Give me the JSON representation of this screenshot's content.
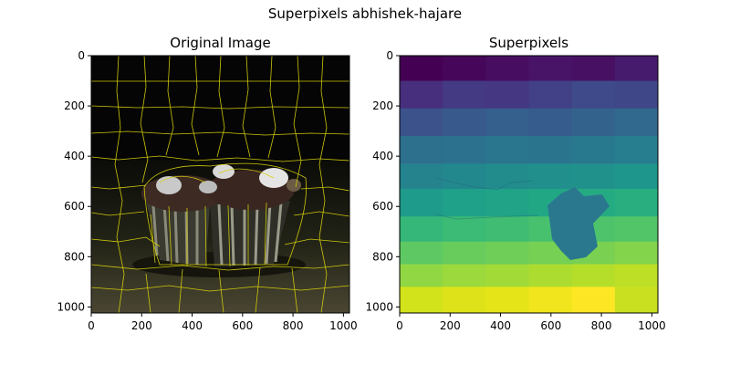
{
  "figure": {
    "suptitle": "Superpixels abhishek-hajare"
  },
  "chart_data": [
    {
      "type": "image",
      "title": "Original Image",
      "xlim": [
        0,
        1024
      ],
      "ylim": [
        1024,
        0
      ],
      "xticks": [
        0,
        200,
        400,
        600,
        800,
        1000
      ],
      "yticks": [
        0,
        200,
        400,
        600,
        800,
        1000
      ],
      "content": "photo of cupcakes on a wooden surface with yellow superpixel boundaries",
      "boundary_color": "#d6d10a",
      "background_color": "#050505"
    },
    {
      "type": "heatmap",
      "title": "Superpixels",
      "xlim": [
        0,
        1024
      ],
      "ylim": [
        1024,
        0
      ],
      "xticks": [
        0,
        200,
        400,
        600,
        800,
        1000
      ],
      "yticks": [
        0,
        200,
        400,
        600,
        800,
        1000
      ],
      "colormap": "viridis",
      "row_bands": [
        {
          "y": [
            0,
            100
          ],
          "colors": [
            "#440154",
            "#46075a",
            "#470d60",
            "#481467",
            "#471063",
            "#461a6c"
          ]
        },
        {
          "y": [
            100,
            210
          ],
          "colors": [
            "#472f7d",
            "#443983",
            "#453781",
            "#424086",
            "#3e4a89",
            "#3f4788"
          ]
        },
        {
          "y": [
            210,
            320
          ],
          "colors": [
            "#3b528b",
            "#37598c",
            "#355f8d",
            "#365c8d",
            "#33638d",
            "#31688e"
          ]
        },
        {
          "y": [
            320,
            430
          ],
          "colors": [
            "#2d708e",
            "#2c728e",
            "#2a768e",
            "#2b748e",
            "#29798e",
            "#277e8e"
          ]
        },
        {
          "y": [
            430,
            530
          ],
          "colors": [
            "#25838e",
            "#23888e",
            "#228c8d",
            "#21908d",
            "#21918c",
            "#1f968b"
          ]
        },
        {
          "y": [
            530,
            640
          ],
          "colors": [
            "#1e9b8a",
            "#1fa088",
            "#20a386",
            "#22a785",
            "#25ab82",
            "#29af7f"
          ]
        },
        {
          "y": [
            640,
            740
          ],
          "colors": [
            "#35b779",
            "#3bbb75",
            "#40bd72",
            "#48c16e",
            "#4ec36b",
            "#52c569"
          ]
        },
        {
          "y": [
            740,
            830
          ],
          "colors": [
            "#5ec962",
            "#67cc5c",
            "#6ece58",
            "#75d054",
            "#7ad151",
            "#84d44b"
          ]
        },
        {
          "y": [
            830,
            920
          ],
          "colors": [
            "#90d743",
            "#9bd93c",
            "#a2da37",
            "#addc30",
            "#b5de2b",
            "#bddf26"
          ]
        },
        {
          "y": [
            920,
            1024
          ],
          "colors": [
            "#d2e21b",
            "#dde318",
            "#e5e419",
            "#f1e51d",
            "#fde725",
            "#c8e020"
          ]
        }
      ],
      "blob_color": "#2a788e"
    }
  ]
}
